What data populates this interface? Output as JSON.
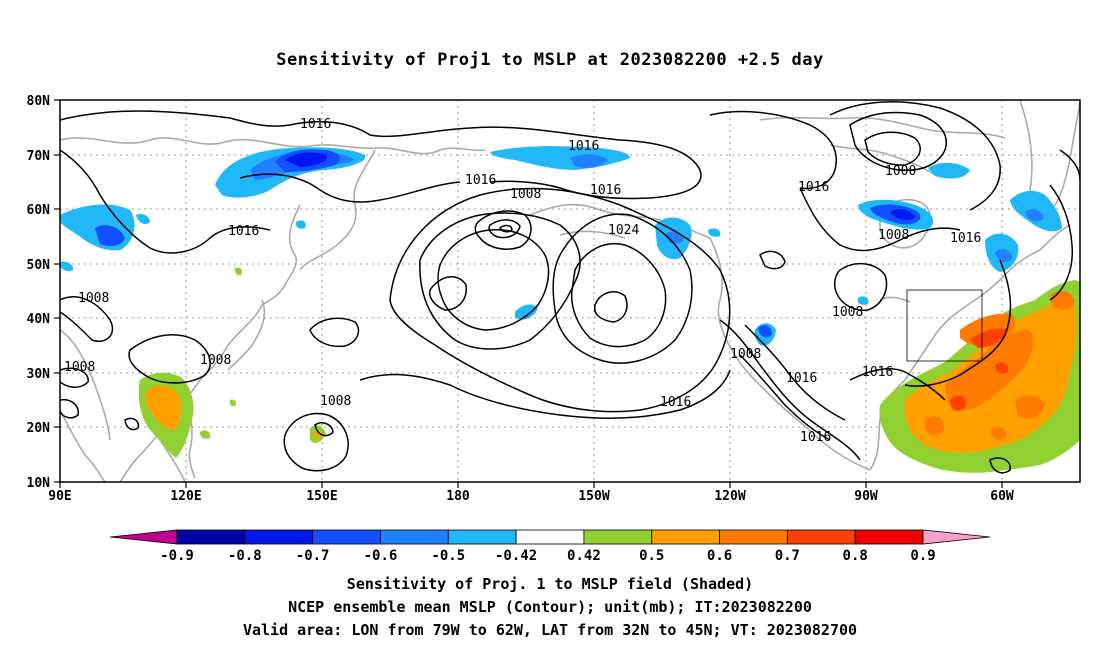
{
  "title": "Sensitivity of Proj1 to MSLP at 2023082200 +2.5 day",
  "lat_ticks": [
    "80N",
    "70N",
    "60N",
    "50N",
    "40N",
    "30N",
    "20N",
    "10N"
  ],
  "lon_ticks": [
    "90E",
    "120E",
    "150E",
    "180",
    "150W",
    "120W",
    "90W",
    "60W"
  ],
  "contour_labels": [
    "1016",
    "1016",
    "1016",
    "1016",
    "1016",
    "1016",
    "1016",
    "1016",
    "1016",
    "1016",
    "1016",
    "1008",
    "1008",
    "1008",
    "1008",
    "1008",
    "1008",
    "1008",
    "1008",
    "1000",
    "1024"
  ],
  "colorbar": {
    "labels": [
      "-0.9",
      "-0.8",
      "-0.7",
      "-0.6",
      "-0.5",
      "-0.42",
      "0.42",
      "0.5",
      "0.6",
      "0.7",
      "0.8",
      "0.9"
    ],
    "colors": [
      "#c20090",
      "#0000a8",
      "#0018f0",
      "#1050ff",
      "#2080ff",
      "#20b8f8",
      "#ffffff",
      "#90d030",
      "#ffa000",
      "#ff7a00",
      "#ff4000",
      "#f00000",
      "#f8a0c8"
    ]
  },
  "caption": [
    "Sensitivity of Proj. 1 to MSLP field (Shaded)",
    "NCEP ensemble mean MSLP (Contour); unit(mb); IT:2023082200",
    "Valid area: LON from 79W to 62W, LAT from 32N to 45N; VT: 2023082700"
  ]
}
